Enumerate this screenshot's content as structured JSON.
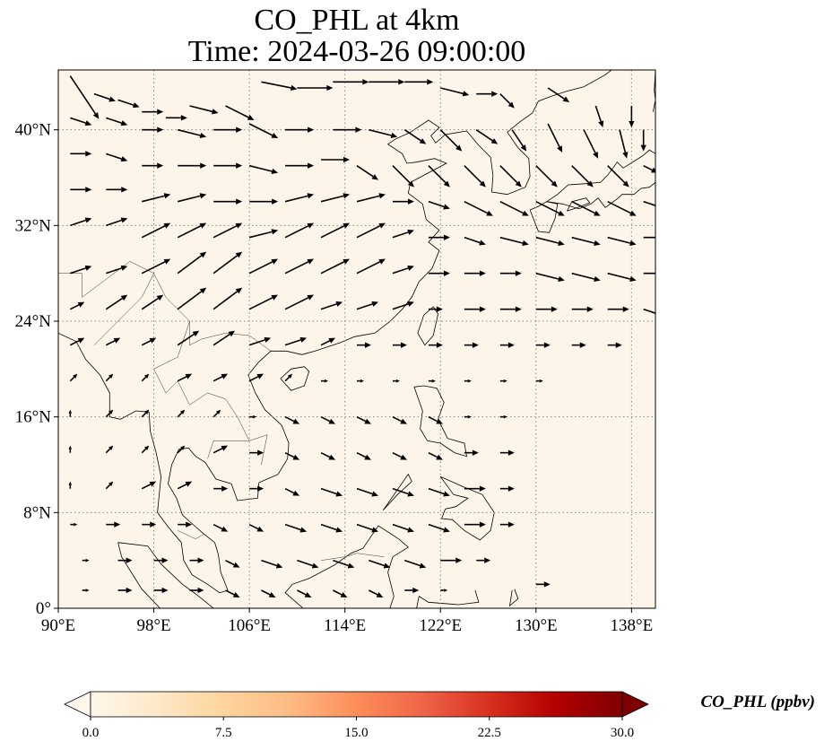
{
  "title": {
    "line1": "CO_PHL at 4km",
    "line2": "Time: 2024-03-26 09:00:00"
  },
  "map": {
    "extent": {
      "lon": [
        90,
        140
      ],
      "lat": [
        0,
        45
      ]
    },
    "background_color": "#fdf5e9",
    "gridlines": true,
    "lon_ticks": [
      {
        "value": 90,
        "label": "90°E"
      },
      {
        "value": 98,
        "label": "98°E"
      },
      {
        "value": 106,
        "label": "106°E"
      },
      {
        "value": 114,
        "label": "114°E"
      },
      {
        "value": 122,
        "label": "122°E"
      },
      {
        "value": 130,
        "label": "130°E"
      },
      {
        "value": 138,
        "label": "138°E"
      }
    ],
    "lat_ticks": [
      {
        "value": 0,
        "label": "0°"
      },
      {
        "value": 8,
        "label": "8°N"
      },
      {
        "value": 16,
        "label": "16°N"
      },
      {
        "value": 24,
        "label": "24°N"
      },
      {
        "value": 32,
        "label": "32°N"
      },
      {
        "value": 40,
        "label": "40°N"
      }
    ],
    "coastline_color": "#000000",
    "vector_color": "#000000",
    "wind_vectors": [
      [
        91,
        44.5,
        4,
        -6
      ],
      [
        93,
        43,
        3,
        -1
      ],
      [
        95,
        42.5,
        3,
        -1
      ],
      [
        97,
        41.5,
        3,
        0
      ],
      [
        99,
        41,
        3,
        0
      ],
      [
        101,
        42,
        4,
        -1
      ],
      [
        104,
        42,
        4,
        -2
      ],
      [
        107,
        44,
        5,
        -1
      ],
      [
        110,
        43.5,
        5,
        0
      ],
      [
        113,
        44,
        5,
        0
      ],
      [
        116,
        44,
        5,
        0
      ],
      [
        119,
        44,
        4,
        0
      ],
      [
        122,
        43.5,
        4,
        -1
      ],
      [
        125,
        43,
        3,
        0
      ],
      [
        127,
        43,
        2,
        -2
      ],
      [
        131,
        43.5,
        3,
        -2
      ],
      [
        135,
        42,
        1,
        -3
      ],
      [
        138,
        42,
        0,
        -3
      ],
      [
        91,
        41,
        3,
        -1
      ],
      [
        94,
        41,
        3,
        -1
      ],
      [
        97,
        40,
        3,
        0
      ],
      [
        100,
        40,
        4,
        -1
      ],
      [
        103,
        40,
        4,
        0
      ],
      [
        106,
        40.5,
        4,
        -2
      ],
      [
        109,
        40,
        4,
        0
      ],
      [
        113,
        40,
        4,
        0
      ],
      [
        116,
        40,
        4,
        -1
      ],
      [
        119,
        40,
        3,
        -2
      ],
      [
        122,
        40,
        3,
        -3
      ],
      [
        125,
        40,
        3,
        -2
      ],
      [
        128,
        40,
        2,
        -3
      ],
      [
        131,
        40.5,
        2,
        -4
      ],
      [
        134,
        40,
        2,
        -4
      ],
      [
        137,
        40,
        1,
        -4
      ],
      [
        139,
        40,
        0,
        -3
      ],
      [
        91,
        38,
        3,
        0
      ],
      [
        94,
        38,
        3,
        -1
      ],
      [
        97,
        37,
        3,
        0
      ],
      [
        100,
        37,
        4,
        0
      ],
      [
        103,
        37,
        4,
        0
      ],
      [
        106,
        37,
        4,
        -1
      ],
      [
        109,
        37,
        4,
        0
      ],
      [
        112,
        37.5,
        4,
        0
      ],
      [
        115,
        37,
        3,
        -2
      ],
      [
        118,
        37,
        3,
        -3
      ],
      [
        121,
        37,
        3,
        -3
      ],
      [
        124,
        37,
        3,
        -3
      ],
      [
        127,
        37,
        3,
        -3
      ],
      [
        130,
        37,
        3,
        -3
      ],
      [
        133,
        37,
        3,
        -3
      ],
      [
        136,
        37,
        3,
        -3
      ],
      [
        139,
        37,
        2,
        -1
      ],
      [
        91,
        35,
        3,
        0
      ],
      [
        94,
        35,
        3,
        0
      ],
      [
        97,
        34,
        4,
        1
      ],
      [
        100,
        34,
        4,
        1
      ],
      [
        103,
        34,
        4,
        0
      ],
      [
        106,
        34,
        4,
        0
      ],
      [
        109,
        34,
        4,
        1
      ],
      [
        112,
        34,
        4,
        1
      ],
      [
        115,
        34,
        4,
        1
      ],
      [
        118,
        34,
        3,
        0
      ],
      [
        121,
        34,
        3,
        -1
      ],
      [
        124,
        34,
        4,
        -2
      ],
      [
        127,
        34,
        4,
        -2
      ],
      [
        130,
        34,
        4,
        -2
      ],
      [
        133,
        34,
        4,
        -2
      ],
      [
        136,
        34,
        4,
        -2
      ],
      [
        139,
        34,
        3,
        -1
      ],
      [
        91,
        32,
        3,
        1
      ],
      [
        94,
        32,
        3,
        1
      ],
      [
        97,
        31,
        4,
        2
      ],
      [
        100,
        31,
        4,
        2
      ],
      [
        103,
        31,
        4,
        2
      ],
      [
        106,
        31,
        4,
        1
      ],
      [
        109,
        31,
        4,
        2
      ],
      [
        112,
        31,
        4,
        2
      ],
      [
        115,
        31,
        4,
        2
      ],
      [
        118,
        31,
        3,
        1
      ],
      [
        121,
        31,
        3,
        0
      ],
      [
        124,
        31,
        3,
        -1
      ],
      [
        127,
        31,
        4,
        -1
      ],
      [
        130,
        31,
        4,
        -1
      ],
      [
        133,
        31,
        4,
        -1
      ],
      [
        136,
        31,
        4,
        -1
      ],
      [
        139,
        31,
        3,
        0
      ],
      [
        91,
        28,
        3,
        1
      ],
      [
        94,
        28,
        3,
        1
      ],
      [
        97,
        28,
        4,
        2
      ],
      [
        100,
        28,
        4,
        3
      ],
      [
        103,
        28,
        4,
        3
      ],
      [
        106,
        28,
        4,
        2
      ],
      [
        109,
        28,
        4,
        2
      ],
      [
        112,
        28,
        4,
        2
      ],
      [
        115,
        28,
        4,
        2
      ],
      [
        118,
        28,
        3,
        1
      ],
      [
        121,
        28,
        3,
        0
      ],
      [
        124,
        28,
        3,
        0
      ],
      [
        127,
        28,
        3,
        0
      ],
      [
        130,
        28,
        4,
        -1
      ],
      [
        133,
        28,
        4,
        -1
      ],
      [
        136,
        28,
        4,
        -1
      ],
      [
        139,
        28,
        3,
        0
      ],
      [
        91,
        25,
        2,
        1
      ],
      [
        94,
        25,
        3,
        2
      ],
      [
        97,
        25,
        3,
        2
      ],
      [
        100,
        25,
        4,
        3
      ],
      [
        103,
        25,
        4,
        3
      ],
      [
        106,
        25,
        4,
        2
      ],
      [
        109,
        25,
        4,
        2
      ],
      [
        112,
        25,
        3,
        1
      ],
      [
        115,
        25,
        3,
        1
      ],
      [
        118,
        25,
        3,
        1
      ],
      [
        121,
        25,
        2,
        0
      ],
      [
        124,
        25,
        3,
        0
      ],
      [
        127,
        25,
        3,
        0
      ],
      [
        130,
        25,
        3,
        0
      ],
      [
        133,
        25,
        3,
        0
      ],
      [
        136,
        25,
        3,
        0
      ],
      [
        139,
        25,
        3,
        -1
      ],
      [
        91,
        22,
        2,
        1
      ],
      [
        94,
        22,
        2,
        1
      ],
      [
        97,
        22,
        2,
        1
      ],
      [
        100,
        22,
        3,
        2
      ],
      [
        103,
        22,
        3,
        2
      ],
      [
        106,
        22,
        3,
        1
      ],
      [
        109,
        22,
        3,
        1
      ],
      [
        112,
        22,
        2,
        1
      ],
      [
        115,
        22,
        2,
        0
      ],
      [
        118,
        22,
        2,
        0
      ],
      [
        121,
        22,
        2,
        0
      ],
      [
        124,
        22,
        2,
        0
      ],
      [
        127,
        22,
        2,
        0
      ],
      [
        130,
        22,
        2,
        0
      ],
      [
        133,
        22,
        2,
        0
      ],
      [
        136,
        22,
        2,
        0
      ],
      [
        91,
        19,
        1,
        1
      ],
      [
        94,
        19,
        1,
        1
      ],
      [
        97,
        19,
        1,
        1
      ],
      [
        100,
        19,
        2,
        1
      ],
      [
        103,
        19,
        2,
        1
      ],
      [
        106,
        19,
        2,
        1
      ],
      [
        109,
        19,
        1,
        1
      ],
      [
        112,
        19,
        1,
        0
      ],
      [
        115,
        19,
        1,
        0
      ],
      [
        118,
        19,
        1,
        0
      ],
      [
        121,
        19,
        1,
        0
      ],
      [
        124,
        19,
        1,
        0
      ],
      [
        127,
        19,
        1,
        0
      ],
      [
        130,
        19,
        1,
        0
      ],
      [
        91,
        16,
        0,
        1
      ],
      [
        94,
        16,
        1,
        1
      ],
      [
        97,
        16,
        1,
        1
      ],
      [
        100,
        16,
        1,
        1
      ],
      [
        103,
        16,
        1,
        1
      ],
      [
        106,
        16,
        1,
        0
      ],
      [
        109,
        16,
        2,
        -1
      ],
      [
        112,
        16,
        2,
        -1
      ],
      [
        115,
        16,
        2,
        -1
      ],
      [
        118,
        16,
        2,
        -1
      ],
      [
        121,
        16,
        2,
        -1
      ],
      [
        124,
        16,
        1,
        0
      ],
      [
        127,
        16,
        1,
        0
      ],
      [
        91,
        13,
        0,
        1
      ],
      [
        94,
        13,
        1,
        1
      ],
      [
        97,
        13,
        1,
        1
      ],
      [
        100,
        13,
        1,
        1
      ],
      [
        103,
        13,
        2,
        1
      ],
      [
        106,
        13,
        2,
        0
      ],
      [
        109,
        13,
        2,
        -1
      ],
      [
        112,
        13,
        2,
        -1
      ],
      [
        115,
        13,
        2,
        -1
      ],
      [
        118,
        13,
        2,
        -1
      ],
      [
        121,
        13,
        2,
        -1
      ],
      [
        124,
        13,
        2,
        0
      ],
      [
        127,
        13,
        2,
        0
      ],
      [
        91,
        10,
        0,
        1
      ],
      [
        94,
        10,
        1,
        1
      ],
      [
        97,
        10,
        2,
        1
      ],
      [
        100,
        10,
        2,
        1
      ],
      [
        103,
        10,
        2,
        0
      ],
      [
        106,
        10,
        2,
        0
      ],
      [
        109,
        10,
        2,
        -1
      ],
      [
        112,
        10,
        3,
        -1
      ],
      [
        115,
        10,
        3,
        -1
      ],
      [
        118,
        10,
        3,
        -1
      ],
      [
        121,
        10,
        3,
        -1
      ],
      [
        124,
        10,
        3,
        0
      ],
      [
        127,
        10,
        2,
        0
      ],
      [
        91,
        7,
        1,
        0
      ],
      [
        94,
        7,
        2,
        0
      ],
      [
        97,
        7,
        2,
        0
      ],
      [
        100,
        7,
        2,
        0
      ],
      [
        103,
        7,
        2,
        -1
      ],
      [
        106,
        7,
        2,
        -1
      ],
      [
        109,
        7,
        3,
        -1
      ],
      [
        112,
        7,
        3,
        -1
      ],
      [
        115,
        7,
        3,
        -1
      ],
      [
        118,
        7,
        3,
        -1
      ],
      [
        121,
        7,
        3,
        -1
      ],
      [
        124,
        7,
        3,
        0
      ],
      [
        127,
        7,
        2,
        0
      ],
      [
        92,
        4,
        1,
        0
      ],
      [
        95,
        4,
        2,
        0
      ],
      [
        98,
        4,
        2,
        0
      ],
      [
        101,
        4,
        2,
        0
      ],
      [
        104,
        4,
        2,
        -1
      ],
      [
        107,
        4,
        3,
        -1
      ],
      [
        110,
        4,
        3,
        -1
      ],
      [
        113,
        4,
        3,
        -1
      ],
      [
        116,
        4,
        3,
        -1
      ],
      [
        119,
        4,
        3,
        -1
      ],
      [
        122,
        4,
        3,
        0
      ],
      [
        125,
        4,
        2,
        0
      ],
      [
        92,
        1.5,
        1,
        0
      ],
      [
        95,
        1.5,
        2,
        0
      ],
      [
        98,
        1.5,
        2,
        0
      ],
      [
        101,
        1.5,
        2,
        0
      ],
      [
        104,
        1.5,
        2,
        -1
      ],
      [
        107,
        1.5,
        2,
        -1
      ],
      [
        110,
        1.5,
        2,
        -1
      ],
      [
        113,
        1.5,
        2,
        -1
      ],
      [
        116,
        1.5,
        2,
        -1
      ],
      [
        119,
        1.5,
        2,
        0
      ],
      [
        122,
        1.5,
        1,
        0
      ],
      [
        130,
        2,
        2,
        0
      ]
    ]
  },
  "colorbar": {
    "label": "CO_PHL (ppbv)",
    "min": 0,
    "max": 30,
    "extend": "both",
    "ticks": [
      {
        "value": 0,
        "label": "0.0"
      },
      {
        "value": 7.5,
        "label": "7.5"
      },
      {
        "value": 15,
        "label": "15.0"
      },
      {
        "value": 22.5,
        "label": "22.5"
      },
      {
        "value": 30,
        "label": "30.0"
      }
    ],
    "colors": [
      "#fff7ec",
      "#fee8c8",
      "#fdd49e",
      "#fdbb84",
      "#fc8d59",
      "#ef6548",
      "#d7301f",
      "#b30000",
      "#7f0000"
    ]
  }
}
